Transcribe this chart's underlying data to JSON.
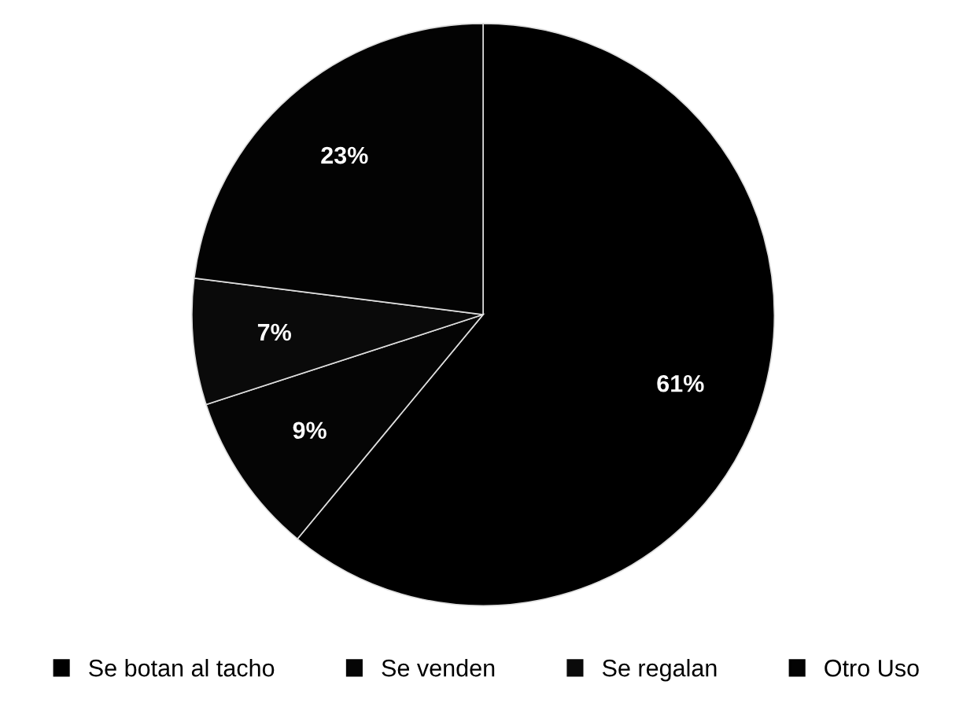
{
  "chart_data": {
    "type": "pie",
    "categories": [
      "Se botan al tacho",
      "Se venden",
      "Se regalan",
      "Otro Uso"
    ],
    "values": [
      61,
      9,
      7,
      23
    ],
    "colors": [
      "#000000",
      "#050505",
      "#0a0a0a",
      "#030303"
    ],
    "value_labels": [
      "61%",
      "9%",
      "7%",
      "23%"
    ],
    "legend": "bottom"
  }
}
